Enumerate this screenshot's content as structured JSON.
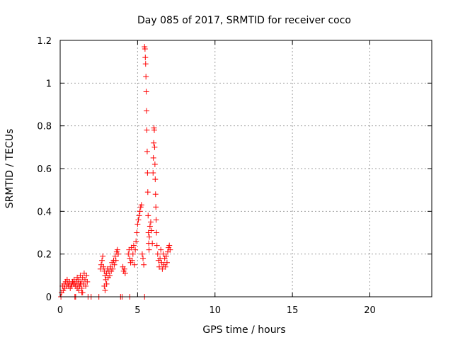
{
  "chart_data": {
    "type": "scatter",
    "title": "Day 085 of 2017, SRMTID for receiver coco",
    "xlabel": "GPS time / hours",
    "ylabel": "SRMTID / TECUs",
    "xlim": [
      0,
      24
    ],
    "ylim": [
      0,
      1.2
    ],
    "xticks": [
      0,
      5,
      10,
      15,
      20
    ],
    "xtick_labels": [
      "0",
      "5",
      "10",
      "15",
      "20"
    ],
    "yticks": [
      0,
      0.2,
      0.4,
      0.6,
      0.8,
      1.0,
      1.2
    ],
    "ytick_labels": [
      "0",
      "0.2",
      "0.4",
      "0.6",
      "0.8",
      "1",
      "1.2"
    ],
    "grid": true,
    "marker": "+",
    "series": [
      {
        "name": "SRMTID",
        "color": "#ff0000",
        "points": [
          [
            0.05,
            0.0
          ],
          [
            0.1,
            0.02
          ],
          [
            0.15,
            0.05
          ],
          [
            0.2,
            0.03
          ],
          [
            0.25,
            0.06
          ],
          [
            0.3,
            0.04
          ],
          [
            0.35,
            0.07
          ],
          [
            0.4,
            0.05
          ],
          [
            0.45,
            0.08
          ],
          [
            0.5,
            0.06
          ],
          [
            0.55,
            0.05
          ],
          [
            0.6,
            0.07
          ],
          [
            0.65,
            0.04
          ],
          [
            0.7,
            0.06
          ],
          [
            0.75,
            0.05
          ],
          [
            0.8,
            0.07
          ],
          [
            0.85,
            0.06
          ],
          [
            0.9,
            0.08
          ],
          [
            0.95,
            0.06
          ],
          [
            1.0,
            0.05
          ],
          [
            1.05,
            0.07
          ],
          [
            1.1,
            0.09
          ],
          [
            1.15,
            0.06
          ],
          [
            1.2,
            0.08
          ],
          [
            1.25,
            0.05
          ],
          [
            1.3,
            0.1
          ],
          [
            1.35,
            0.07
          ],
          [
            1.4,
            0.04
          ],
          [
            1.45,
            0.09
          ],
          [
            1.5,
            0.06
          ],
          [
            1.55,
            0.11
          ],
          [
            1.6,
            0.08
          ],
          [
            1.65,
            0.05
          ],
          [
            1.7,
            0.1
          ],
          [
            1.75,
            0.07
          ],
          [
            1.4,
            0.02
          ],
          [
            1.1,
            0.04
          ],
          [
            1.2,
            0.03
          ],
          [
            1.3,
            0.06
          ],
          [
            1.45,
            0.02
          ],
          [
            2.6,
            0.13
          ],
          [
            2.65,
            0.15
          ],
          [
            2.7,
            0.17
          ],
          [
            2.75,
            0.19
          ],
          [
            2.8,
            0.14
          ],
          [
            2.85,
            0.12
          ],
          [
            2.9,
            0.1
          ],
          [
            2.95,
            0.08
          ],
          [
            3.0,
            0.11
          ],
          [
            3.05,
            0.13
          ],
          [
            3.1,
            0.09
          ],
          [
            3.15,
            0.12
          ],
          [
            3.2,
            0.1
          ],
          [
            3.25,
            0.14
          ],
          [
            3.3,
            0.12
          ],
          [
            3.35,
            0.16
          ],
          [
            3.4,
            0.13
          ],
          [
            3.45,
            0.17
          ],
          [
            3.5,
            0.15
          ],
          [
            3.55,
            0.19
          ],
          [
            3.6,
            0.17
          ],
          [
            3.65,
            0.21
          ],
          [
            3.7,
            0.22
          ],
          [
            3.75,
            0.2
          ],
          [
            2.85,
            0.05
          ],
          [
            2.9,
            0.03
          ],
          [
            3.0,
            0.06
          ],
          [
            4.05,
            0.14
          ],
          [
            4.1,
            0.12
          ],
          [
            4.15,
            0.13
          ],
          [
            4.2,
            0.11
          ],
          [
            4.4,
            0.2
          ],
          [
            4.45,
            0.22
          ],
          [
            4.5,
            0.18
          ],
          [
            4.55,
            0.16
          ],
          [
            4.6,
            0.23
          ],
          [
            4.65,
            0.17
          ],
          [
            4.7,
            0.2
          ],
          [
            4.75,
            0.24
          ],
          [
            4.8,
            0.15
          ],
          [
            4.85,
            0.22
          ],
          [
            4.9,
            0.26
          ],
          [
            4.95,
            0.3
          ],
          [
            5.0,
            0.34
          ],
          [
            5.05,
            0.36
          ],
          [
            5.1,
            0.38
          ],
          [
            5.15,
            0.4
          ],
          [
            5.2,
            0.42
          ],
          [
            5.25,
            0.43
          ],
          [
            5.3,
            0.2
          ],
          [
            5.35,
            0.18
          ],
          [
            5.4,
            0.15
          ],
          [
            5.45,
            1.17
          ],
          [
            5.48,
            1.16
          ],
          [
            5.5,
            1.12
          ],
          [
            5.52,
            1.09
          ],
          [
            5.54,
            1.03
          ],
          [
            5.56,
            0.96
          ],
          [
            5.58,
            0.87
          ],
          [
            5.6,
            0.78
          ],
          [
            5.62,
            0.68
          ],
          [
            5.64,
            0.58
          ],
          [
            5.66,
            0.49
          ],
          [
            5.68,
            0.38
          ],
          [
            5.7,
            0.3
          ],
          [
            5.72,
            0.25
          ],
          [
            5.74,
            0.22
          ],
          [
            5.76,
            0.28
          ],
          [
            5.8,
            0.33
          ],
          [
            5.85,
            0.35
          ],
          [
            5.9,
            0.31
          ],
          [
            5.95,
            0.25
          ],
          [
            6.0,
            0.58
          ],
          [
            6.02,
            0.65
          ],
          [
            6.04,
            0.72
          ],
          [
            6.06,
            0.79
          ],
          [
            6.08,
            0.78
          ],
          [
            6.1,
            0.7
          ],
          [
            6.12,
            0.62
          ],
          [
            6.14,
            0.55
          ],
          [
            6.16,
            0.48
          ],
          [
            6.18,
            0.42
          ],
          [
            6.2,
            0.36
          ],
          [
            6.22,
            0.3
          ],
          [
            6.25,
            0.24
          ],
          [
            6.3,
            0.2
          ],
          [
            6.35,
            0.17
          ],
          [
            6.4,
            0.14
          ],
          [
            6.45,
            0.18
          ],
          [
            6.5,
            0.22
          ],
          [
            6.55,
            0.16
          ],
          [
            6.6,
            0.13
          ],
          [
            6.65,
            0.2
          ],
          [
            6.7,
            0.15
          ],
          [
            6.75,
            0.18
          ],
          [
            6.8,
            0.14
          ],
          [
            6.85,
            0.19
          ],
          [
            6.9,
            0.16
          ],
          [
            6.95,
            0.21
          ],
          [
            7.0,
            0.23
          ],
          [
            7.05,
            0.24
          ],
          [
            7.1,
            0.22
          ],
          [
            2.5,
            0.0
          ],
          [
            2.0,
            0.0
          ],
          [
            1.8,
            0.0
          ],
          [
            1.0,
            0.0
          ],
          [
            0.95,
            0.0
          ],
          [
            3.9,
            0.0
          ],
          [
            4.0,
            0.0
          ],
          [
            4.5,
            0.0
          ],
          [
            5.45,
            0.0
          ]
        ]
      }
    ]
  }
}
